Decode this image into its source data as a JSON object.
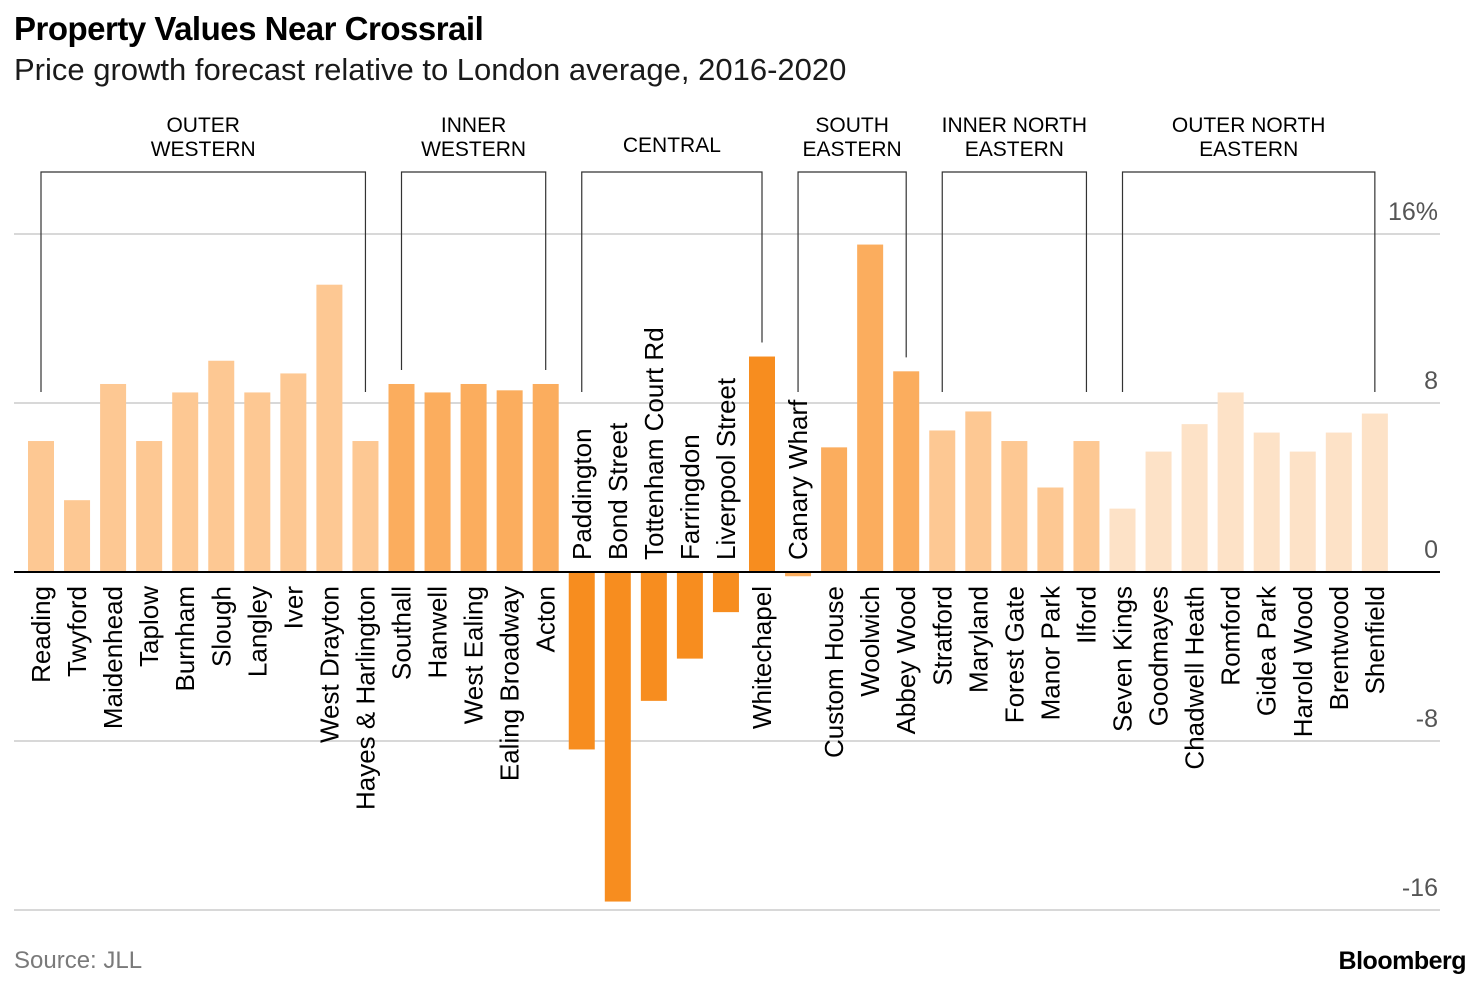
{
  "title": "Property Values Near Crossrail",
  "subtitle": "Price growth forecast relative to London average, 2016-2020",
  "source": "Source: JLL",
  "brand": "Bloomberg",
  "colors": {
    "outer_western": "#fdc893",
    "inner_western": "#fbad5e",
    "central": "#f78d1f",
    "south_eastern": "#fbad5e",
    "inner_north_eastern": "#fdc893",
    "outer_north_eastern": "#fde2c7",
    "gridline": "#cccccc",
    "axis": "#000000",
    "tick_label": "#555555"
  },
  "chart_data": {
    "type": "bar",
    "title": "Property Values Near Crossrail",
    "subtitle": "Price growth forecast relative to London average, 2016-2020",
    "ylim": [
      -16,
      16
    ],
    "yticks": [
      16,
      8,
      0,
      -8,
      -16
    ],
    "ytick_labels": [
      "16%",
      "8",
      "0",
      "-8",
      "-16"
    ],
    "grid": true,
    "groups": [
      {
        "name_lines": [
          "OUTER",
          "WESTERN"
        ],
        "color_key": "outer_western",
        "stations": [
          "Reading",
          "Twyford",
          "Maidenhead",
          "Taplow",
          "Burnham",
          "Slough",
          "Langley",
          "Iver",
          "West Drayton",
          "Hayes & Harlington"
        ],
        "values": [
          6.2,
          3.4,
          8.9,
          6.2,
          8.5,
          10,
          8.5,
          9.4,
          13.6,
          6.2
        ]
      },
      {
        "name_lines": [
          "INNER",
          "WESTERN"
        ],
        "color_key": "inner_western",
        "stations": [
          "Southall",
          "Hanwell",
          "West Ealing",
          "Ealing Broadway",
          "Acton"
        ],
        "values": [
          8.9,
          8.5,
          8.9,
          8.6,
          8.9
        ]
      },
      {
        "name_lines": [
          "CENTRAL"
        ],
        "color_key": "central",
        "stations": [
          "Paddington",
          "Bond Street",
          "Tottenham Court Rd",
          "Farringdon",
          "Liverpool Street",
          "Whitechapel"
        ],
        "values": [
          -8.4,
          -15.6,
          -6.1,
          -4.1,
          -1.9,
          10.2
        ]
      },
      {
        "name_lines": [
          "SOUTH",
          "EASTERN"
        ],
        "color_key": "south_eastern",
        "stations": [
          "Canary Wharf",
          "Custom House",
          "Woolwich",
          "Abbey Wood"
        ],
        "values": [
          -0.2,
          5.9,
          15.5,
          9.5
        ]
      },
      {
        "name_lines": [
          "INNER NORTH",
          "EASTERN"
        ],
        "color_key": "inner_north_eastern",
        "stations": [
          "Stratford",
          "Maryland",
          "Forest Gate",
          "Manor Park",
          "Ilford"
        ],
        "values": [
          6.7,
          7.6,
          6.2,
          4,
          6.2
        ]
      },
      {
        "name_lines": [
          "OUTER NORTH",
          "EASTERN"
        ],
        "color_key": "outer_north_eastern",
        "stations": [
          "Seven Kings",
          "Goodmayes",
          "Chadwell Heath",
          "Romford",
          "Gidea Park",
          "Harold Wood",
          "Brentwood",
          "Shenfield"
        ],
        "values": [
          3,
          5.7,
          7,
          8.5,
          6.6,
          5.7,
          6.6,
          7.5
        ]
      }
    ]
  }
}
